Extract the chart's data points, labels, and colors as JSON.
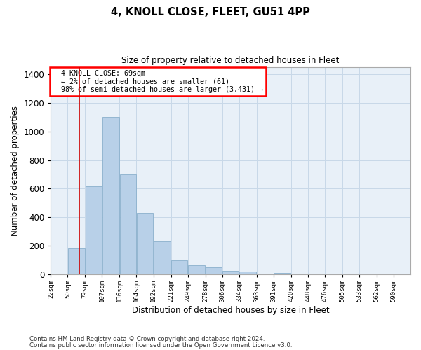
{
  "title1": "4, KNOLL CLOSE, FLEET, GU51 4PP",
  "title2": "Size of property relative to detached houses in Fleet",
  "xlabel": "Distribution of detached houses by size in Fleet",
  "ylabel": "Number of detached properties",
  "bar_color": "#b8d0e8",
  "bar_edge_color": "#8ab0cc",
  "grid_color": "#c8d8e8",
  "background_color": "#e8f0f8",
  "vline_color": "#cc0000",
  "footer1": "Contains HM Land Registry data © Crown copyright and database right 2024.",
  "footer2": "Contains public sector information licensed under the Open Government Licence v3.0.",
  "annotation_line1": "  4 KNOLL CLOSE: 69sqm",
  "annotation_line2": "  ← 2% of detached houses are smaller (61)",
  "annotation_line3": "  98% of semi-detached houses are larger (3,431) →",
  "bin_labels": [
    "22sqm",
    "50sqm",
    "79sqm",
    "107sqm",
    "136sqm",
    "164sqm",
    "192sqm",
    "221sqm",
    "249sqm",
    "278sqm",
    "306sqm",
    "334sqm",
    "363sqm",
    "391sqm",
    "420sqm",
    "448sqm",
    "476sqm",
    "505sqm",
    "533sqm",
    "562sqm",
    "590sqm"
  ],
  "bar_heights": [
    4,
    180,
    615,
    1100,
    700,
    430,
    230,
    100,
    65,
    50,
    25,
    20,
    5,
    10,
    4,
    3,
    2,
    1,
    1,
    1,
    0
  ],
  "property_sqm": 69,
  "bin_edges": [
    22,
    50,
    79,
    107,
    136,
    164,
    192,
    221,
    249,
    278,
    306,
    334,
    363,
    391,
    420,
    448,
    476,
    505,
    533,
    562,
    590,
    618
  ],
  "ylim": [
    0,
    1450
  ],
  "yticks": [
    0,
    200,
    400,
    600,
    800,
    1000,
    1200,
    1400
  ],
  "xlim": [
    22,
    618
  ]
}
